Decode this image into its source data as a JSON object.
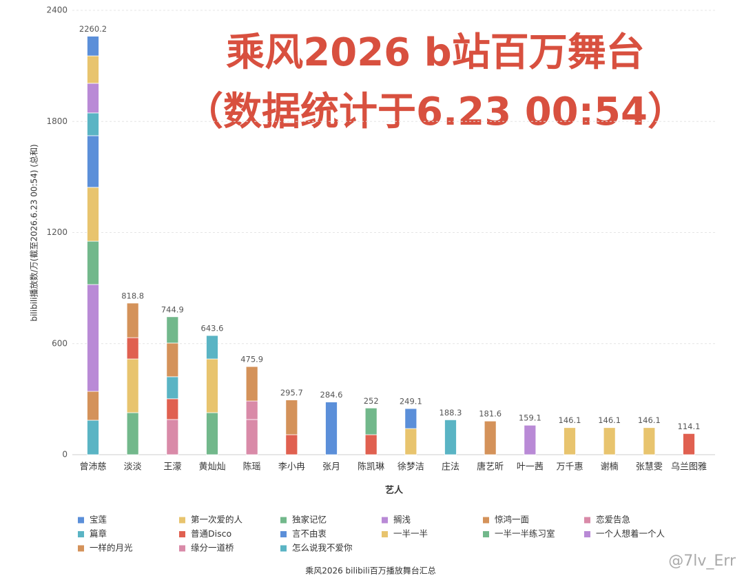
{
  "chart_data": {
    "type": "stacked_bar",
    "title": "乘风2026 b站百万舞台",
    "subtitle": "（数据统计于6.23 00:54）",
    "y_label": "bilibili播放数/万(截至2026.6.23 00:54) (总和)",
    "x_label": "艺人",
    "caption": "乘风2026 bilibili百万播放舞台汇总",
    "watermark": "@7lv_Err",
    "ylim": [
      0,
      2400
    ],
    "yticks": [
      0,
      600,
      1200,
      1800,
      2400
    ],
    "grid": true,
    "categories": [
      "曾沛慈",
      "淡淡",
      "王濛",
      "黄灿灿",
      "陈瑶",
      "李小冉",
      "张月",
      "陈凯琳",
      "徐梦洁",
      "庄法",
      "唐艺昕",
      "叶一茜",
      "万千惠",
      "谢楠",
      "张慧雯",
      "乌兰图雅"
    ],
    "totals": [
      2260.2,
      818.8,
      744.9,
      643.6,
      475.9,
      295.7,
      284.6,
      252,
      249.1,
      188.3,
      181.6,
      159.1,
      146.1,
      146.1,
      146.1,
      114.1
    ],
    "series": [
      {
        "name": "宝莲",
        "color": "#5b8fd9",
        "values": [
          106.2,
          null,
          null,
          null,
          null,
          null,
          null,
          null,
          null,
          null,
          null,
          null,
          null,
          null,
          null,
          null
        ]
      },
      {
        "name": "第一次爱的人",
        "color": "#e8c46e",
        "values": [
          148,
          null,
          null,
          null,
          null,
          null,
          null,
          null,
          null,
          null,
          null,
          null,
          146.1,
          146.1,
          146.1,
          null
        ]
      },
      {
        "name": "独家记忆",
        "color": "#72b88b",
        "values": [
          null,
          null,
          141.9,
          null,
          null,
          null,
          null,
          144,
          null,
          null,
          null,
          null,
          null,
          null,
          null,
          null
        ]
      },
      {
        "name": "搁浅",
        "color": "#b98ad6",
        "values": [
          160,
          null,
          null,
          null,
          null,
          null,
          null,
          null,
          null,
          null,
          null,
          null,
          null,
          null,
          null,
          null
        ]
      },
      {
        "name": "惊鸿一面",
        "color": "#d4925a",
        "values": [
          null,
          186.8,
          182,
          null,
          185.9,
          187.7,
          null,
          null,
          null,
          null,
          181.6,
          null,
          null,
          null,
          null,
          null
        ]
      },
      {
        "name": "恋爱告急",
        "color": "#d98aa8",
        "values": [
          null,
          null,
          null,
          null,
          100,
          null,
          null,
          null,
          null,
          null,
          null,
          null,
          null,
          null,
          null,
          null
        ]
      },
      {
        "name": "篇章",
        "color": "#5ab4c4",
        "values": [
          123,
          null,
          119,
          126.6,
          null,
          null,
          null,
          null,
          null,
          188.3,
          null,
          null,
          null,
          null,
          null,
          null
        ]
      },
      {
        "name": "普通Disco",
        "color": "#e06050",
        "values": [
          null,
          115,
          112,
          null,
          null,
          108,
          null,
          108,
          null,
          null,
          null,
          null,
          null,
          null,
          null,
          114.1
        ]
      },
      {
        "name": "言不由衷",
        "color": "#5b8fd9",
        "values": [
          279,
          null,
          null,
          null,
          null,
          null,
          284.6,
          null,
          108.1,
          null,
          null,
          null,
          null,
          null,
          null,
          null
        ]
      },
      {
        "name": "一半一半",
        "color": "#e8c46e",
        "values": [
          291,
          290,
          null,
          290,
          null,
          null,
          null,
          null,
          141,
          null,
          null,
          null,
          null,
          null,
          null,
          null
        ]
      },
      {
        "name": "一半一半练习室",
        "color": "#72b88b",
        "values": [
          234,
          227,
          null,
          227,
          null,
          null,
          null,
          null,
          null,
          null,
          null,
          null,
          null,
          null,
          null,
          null
        ]
      },
      {
        "name": "一个人想着一个人",
        "color": "#b98ad6",
        "values": [
          577,
          null,
          null,
          null,
          null,
          null,
          null,
          null,
          null,
          null,
          null,
          159.1,
          null,
          null,
          null,
          null
        ]
      },
      {
        "name": "一样的月光",
        "color": "#d4925a",
        "values": [
          156,
          null,
          null,
          null,
          null,
          null,
          null,
          null,
          null,
          null,
          null,
          null,
          null,
          null,
          null,
          null
        ]
      },
      {
        "name": "缘分一道桥",
        "color": "#d98aa8",
        "values": [
          null,
          null,
          190,
          null,
          190,
          null,
          null,
          null,
          null,
          null,
          null,
          null,
          null,
          null,
          null,
          null
        ]
      },
      {
        "name": "怎么说我不爱你",
        "color": "#5ab4c4",
        "values": [
          186,
          null,
          null,
          null,
          null,
          null,
          null,
          null,
          null,
          null,
          null,
          null,
          null,
          null,
          null,
          null
        ]
      }
    ]
  }
}
